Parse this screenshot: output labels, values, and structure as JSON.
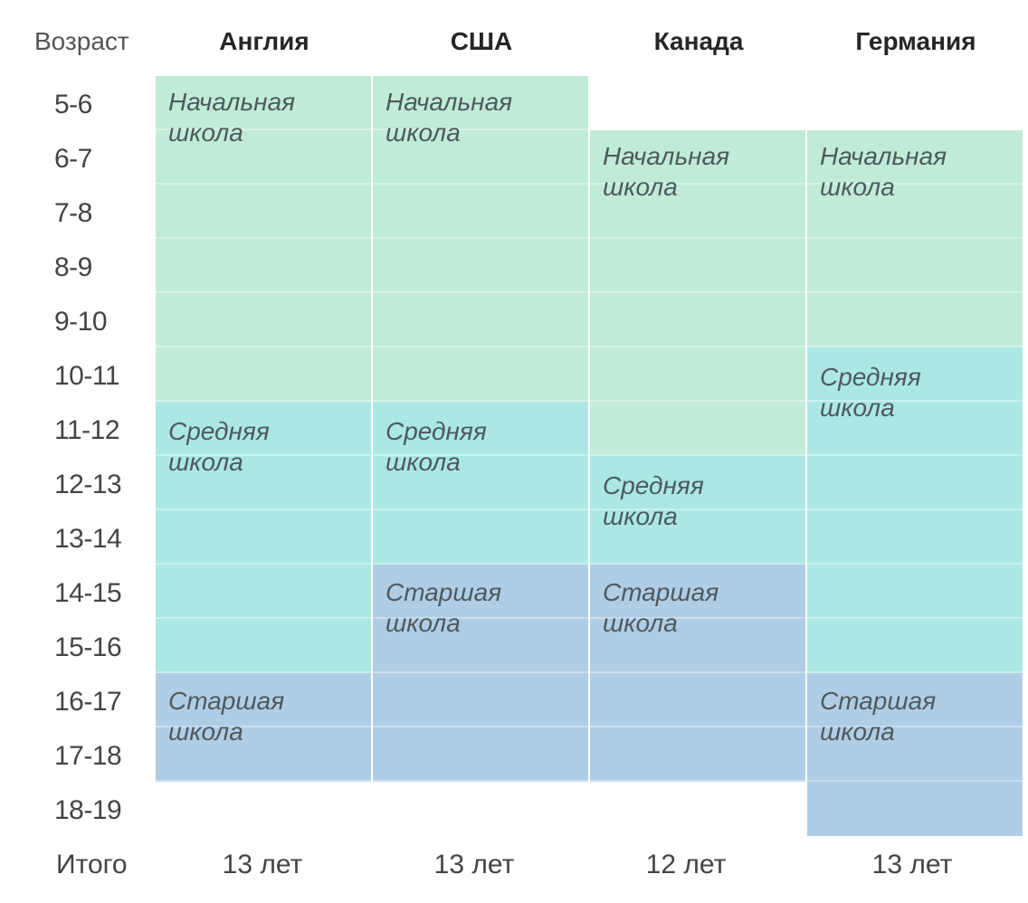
{
  "header": {
    "age_label": "Возраст",
    "countries": [
      "Англия",
      "США",
      "Канада",
      "Германия"
    ]
  },
  "ages": [
    "5-6",
    "6-7",
    "7-8",
    "8-9",
    "9-10",
    "10-11",
    "11-12",
    "12-13",
    "13-14",
    "14-15",
    "15-16",
    "16-17",
    "17-18",
    "18-19"
  ],
  "stages": {
    "england": [
      {
        "label_line1": "Начальная",
        "label_line2": "школа",
        "from_age": "5-6",
        "to_age": "10-11"
      },
      {
        "label_line1": "Средняя",
        "label_line2": "школа",
        "from_age": "11-12",
        "to_age": "15-16"
      },
      {
        "label_line1": "Старшая",
        "label_line2": "школа",
        "from_age": "16-17",
        "to_age": "17-18"
      }
    ],
    "usa": [
      {
        "label_line1": "Начальная",
        "label_line2": "школа",
        "from_age": "5-6",
        "to_age": "10-11"
      },
      {
        "label_line1": "Средняя",
        "label_line2": "школа",
        "from_age": "11-12",
        "to_age": "13-14"
      },
      {
        "label_line1": "Старшая",
        "label_line2": "школа",
        "from_age": "14-15",
        "to_age": "17-18"
      }
    ],
    "canada": [
      {
        "label_line1": "Начальная",
        "label_line2": "школа",
        "from_age": "6-7",
        "to_age": "11-12"
      },
      {
        "label_line1": "Средняя",
        "label_line2": "школа",
        "from_age": "12-13",
        "to_age": "13-14"
      },
      {
        "label_line1": "Старшая",
        "label_line2": "школа",
        "from_age": "14-15",
        "to_age": "17-18"
      }
    ],
    "germany": [
      {
        "label_line1": "Начальная",
        "label_line2": "школа",
        "from_age": "6-7",
        "to_age": "9-10"
      },
      {
        "label_line1": "Средняя",
        "label_line2": "школа",
        "from_age": "10-11",
        "to_age": "15-16"
      },
      {
        "label_line1": "Старшая",
        "label_line2": "школа",
        "from_age": "16-17",
        "to_age": "18-19"
      }
    ]
  },
  "totals": {
    "label": "Итого",
    "values": [
      "13 лет",
      "13 лет",
      "12 лет",
      "13 лет"
    ]
  },
  "colors": {
    "primary": "#c0ecd7",
    "middle": "#abe8e4",
    "senior": "#b0cde6"
  }
}
